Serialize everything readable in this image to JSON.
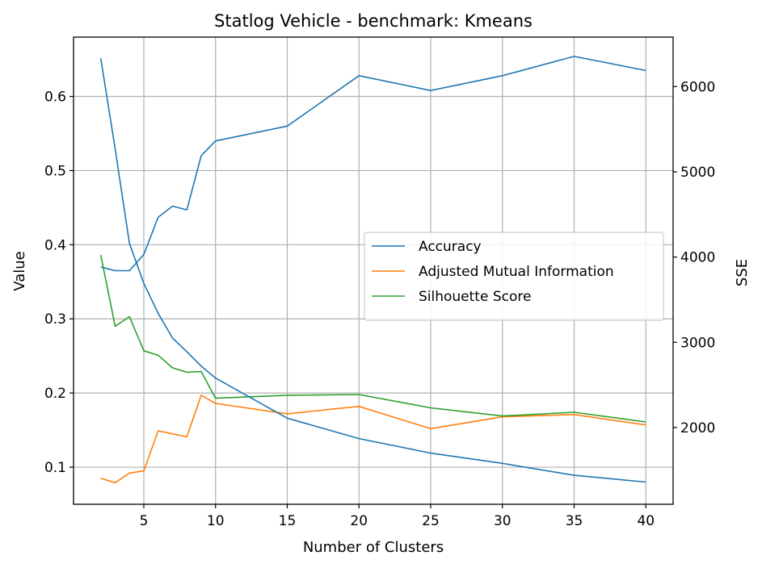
{
  "chart_data": {
    "type": "line",
    "title": "Statlog Vehicle - benchmark: Kmeans",
    "xlabel": "Number of Clusters",
    "ylabel": "Value",
    "y2label": "SSE",
    "xlim": [
      0.1,
      41.9
    ],
    "ylim": [
      0.05,
      0.68
    ],
    "y2lim": [
      1100,
      6580
    ],
    "xticks": [
      5,
      10,
      15,
      20,
      25,
      30,
      35,
      40
    ],
    "yticks": [
      0.1,
      0.2,
      0.3,
      0.4,
      0.5,
      0.6
    ],
    "y2ticks": [
      2000,
      3000,
      4000,
      5000,
      6000
    ],
    "grid": true,
    "legend_position": "center-right",
    "x": [
      2,
      3,
      4,
      5,
      6,
      7,
      8,
      9,
      10,
      15,
      20,
      25,
      30,
      35,
      40
    ],
    "series": [
      {
        "name": "Accuracy",
        "axis": "left",
        "color": "#1f77b4",
        "values": [
          0.37,
          0.365,
          0.365,
          0.387,
          0.437,
          0.452,
          0.447,
          0.52,
          0.54,
          0.56,
          0.628,
          0.608,
          0.628,
          0.654,
          0.635
        ]
      },
      {
        "name": "Adjusted Mutual Information",
        "axis": "left",
        "color": "#ff7f0e",
        "values": [
          0.085,
          0.079,
          0.092,
          0.095,
          0.149,
          0.145,
          0.141,
          0.197,
          0.186,
          0.172,
          0.182,
          0.152,
          0.168,
          0.171,
          0.157
        ]
      },
      {
        "name": "Silhouette Score",
        "axis": "left",
        "color": "#2ca02c",
        "values": [
          0.386,
          0.29,
          0.303,
          0.257,
          0.251,
          0.234,
          0.228,
          0.229,
          0.193,
          0.197,
          0.198,
          0.18,
          0.169,
          0.174,
          0.161
        ]
      },
      {
        "name": "",
        "axis": "right",
        "color": "#1f77b4",
        "values": [
          6330,
          5270,
          4160,
          3690,
          3340,
          3050,
          2890,
          2720,
          2580,
          2110,
          1870,
          1700,
          1580,
          1440,
          1360
        ]
      }
    ]
  }
}
